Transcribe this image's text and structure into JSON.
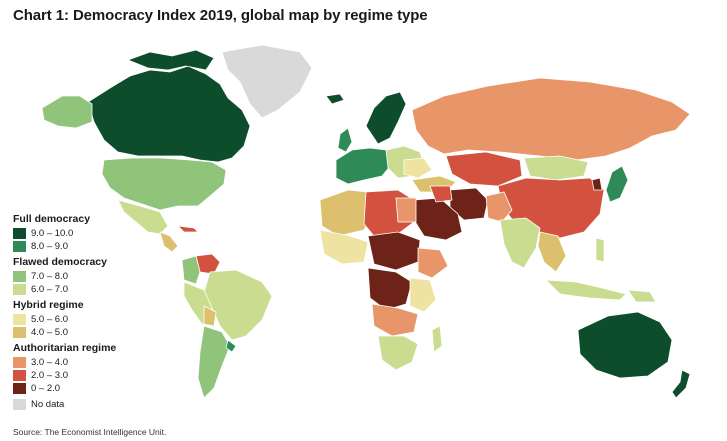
{
  "title": "Chart 1: Democracy Index 2019, global map by regime type",
  "source": "Source: The Economist Intelligence Unit.",
  "legend": {
    "groups": [
      {
        "heading": "Full democracy",
        "items": [
          {
            "label": "9.0 – 10.0",
            "color": "#0e4d2c"
          },
          {
            "label": "8.0 – 9.0",
            "color": "#2e8b57"
          }
        ]
      },
      {
        "heading": "Flawed democracy",
        "items": [
          {
            "label": "7.0 – 8.0",
            "color": "#8fc47a"
          },
          {
            "label": "6.0 – 7.0",
            "color": "#c9dc8f"
          }
        ]
      },
      {
        "heading": "Hybrid regime",
        "items": [
          {
            "label": "5.0 – 6.0",
            "color": "#efe3a1"
          },
          {
            "label": "4.0 – 5.0",
            "color": "#dcc06e"
          }
        ]
      },
      {
        "heading": "Authoritarian regime",
        "items": [
          {
            "label": "3.0 – 4.0",
            "color": "#e9956a"
          },
          {
            "label": "2.0 – 3.0",
            "color": "#d2513f"
          },
          {
            "label": "0 – 2.0",
            "color": "#6e2319"
          }
        ]
      },
      {
        "heading": "",
        "items": [
          {
            "label": "No data",
            "color": "#d9d9d9"
          }
        ]
      }
    ]
  },
  "colors": {
    "ocean": "#ffffff",
    "border": "#ffffff"
  }
}
